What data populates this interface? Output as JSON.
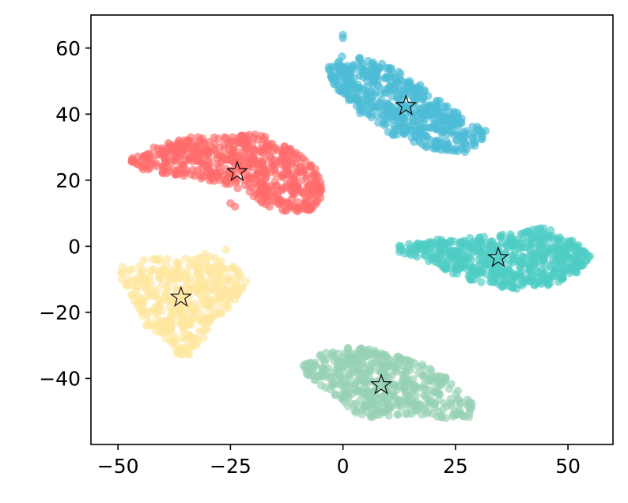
{
  "chart_data": {
    "type": "scatter",
    "xlim": [
      -56,
      60
    ],
    "ylim": [
      -60,
      70
    ],
    "xticks": [
      -50,
      -25,
      0,
      25,
      50
    ],
    "yticks": [
      -40,
      -20,
      0,
      20,
      40,
      60
    ],
    "xtick_labels": [
      "−50",
      "−25",
      "0",
      "25",
      "50"
    ],
    "ytick_labels": [
      "−40",
      "−20",
      "0",
      "20",
      "40",
      "60"
    ],
    "grid": false,
    "legend": "none",
    "star_style": {
      "fill": "none",
      "stroke": "#000000"
    },
    "clusters": [
      {
        "color": "#4DBBD5",
        "center": [
          14,
          42.5
        ],
        "region": [
          [
            -4,
            54
          ],
          [
            0,
            58
          ],
          [
            8,
            56
          ],
          [
            14,
            52
          ],
          [
            18,
            48
          ],
          [
            22,
            44
          ],
          [
            28,
            38
          ],
          [
            33,
            34
          ],
          [
            27,
            28
          ],
          [
            18,
            30
          ],
          [
            10,
            34
          ],
          [
            4,
            40
          ],
          [
            -2,
            48
          ]
        ],
        "extra_points": [
          [
            0,
            64
          ],
          [
            0,
            63
          ]
        ],
        "count": 520
      },
      {
        "color": "#FF6B6B",
        "center": [
          -23.5,
          22.5
        ],
        "region": [
          [
            -47,
            27
          ],
          [
            -42,
            30
          ],
          [
            -34,
            33
          ],
          [
            -26,
            33
          ],
          [
            -20,
            34
          ],
          [
            -14,
            32
          ],
          [
            -10,
            28
          ],
          [
            -6,
            24
          ],
          [
            -4,
            16
          ],
          [
            -7,
            11
          ],
          [
            -14,
            10
          ],
          [
            -20,
            14
          ],
          [
            -24,
            18
          ],
          [
            -30,
            20
          ],
          [
            -40,
            22
          ],
          [
            -47,
            24
          ]
        ],
        "extra_points": [
          [
            -25,
            13
          ],
          [
            -24,
            12
          ]
        ],
        "count": 560
      },
      {
        "color": "#4ECDC4",
        "center": [
          34.5,
          -3.5
        ],
        "region": [
          [
            11,
            0
          ],
          [
            20,
            2
          ],
          [
            30,
            3
          ],
          [
            38,
            4
          ],
          [
            44,
            6
          ],
          [
            48,
            4
          ],
          [
            52,
            1
          ],
          [
            55,
            -3
          ],
          [
            52,
            -8
          ],
          [
            46,
            -12
          ],
          [
            38,
            -13
          ],
          [
            30,
            -11
          ],
          [
            24,
            -8
          ],
          [
            18,
            -4
          ],
          [
            12,
            -2
          ]
        ],
        "extra_points": [],
        "count": 560
      },
      {
        "color": "#FFE6A0",
        "center": [
          -36,
          -15.5
        ],
        "region": [
          [
            -52,
            -7
          ],
          [
            -44,
            -4
          ],
          [
            -36,
            -3
          ],
          [
            -29,
            -2
          ],
          [
            -24,
            -5
          ],
          [
            -21,
            -11
          ],
          [
            -25,
            -18
          ],
          [
            -28,
            -22
          ],
          [
            -31,
            -28
          ],
          [
            -34,
            -33
          ],
          [
            -38,
            -33
          ],
          [
            -40,
            -27
          ],
          [
            -44,
            -24
          ],
          [
            -46,
            -18
          ],
          [
            -48,
            -12
          ]
        ],
        "extra_points": [
          [
            -26,
            -1
          ]
        ],
        "count": 420
      },
      {
        "color": "#97D1B4",
        "center": [
          8.5,
          -42
        ],
        "region": [
          [
            -9,
            -36
          ],
          [
            -4,
            -32
          ],
          [
            4,
            -30
          ],
          [
            14,
            -34
          ],
          [
            22,
            -38
          ],
          [
            26,
            -44
          ],
          [
            29,
            -48
          ],
          [
            28,
            -52
          ],
          [
            22,
            -52
          ],
          [
            14,
            -51
          ],
          [
            6,
            -52
          ],
          [
            2,
            -50
          ],
          [
            -3,
            -44
          ],
          [
            -8,
            -39
          ]
        ],
        "extra_points": [],
        "count": 480
      }
    ]
  }
}
